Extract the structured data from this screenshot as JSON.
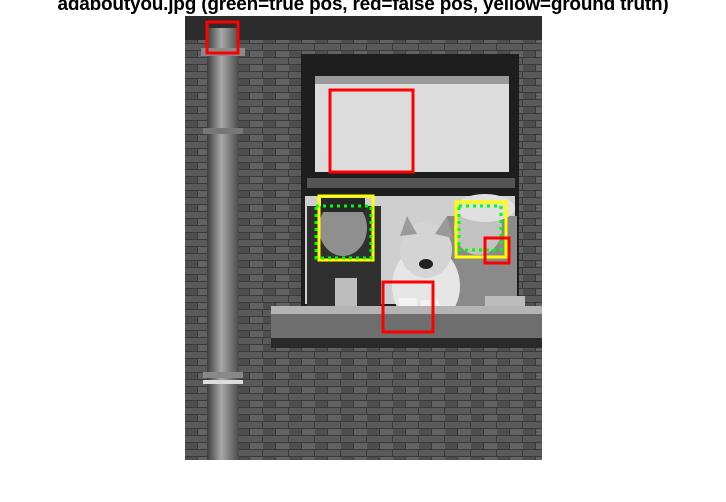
{
  "figure": {
    "title": "adaboutyou.jpg   (green=true pos, red=false pos, yellow=ground truth)"
  },
  "photo": {
    "scene": "black-and-white photo of a man, a woman and a collie dog leaning out of a window in a brick wall",
    "colors": {
      "red": "#ff0000",
      "green": "#00ff00",
      "yellow": "#ffff00"
    }
  }
}
